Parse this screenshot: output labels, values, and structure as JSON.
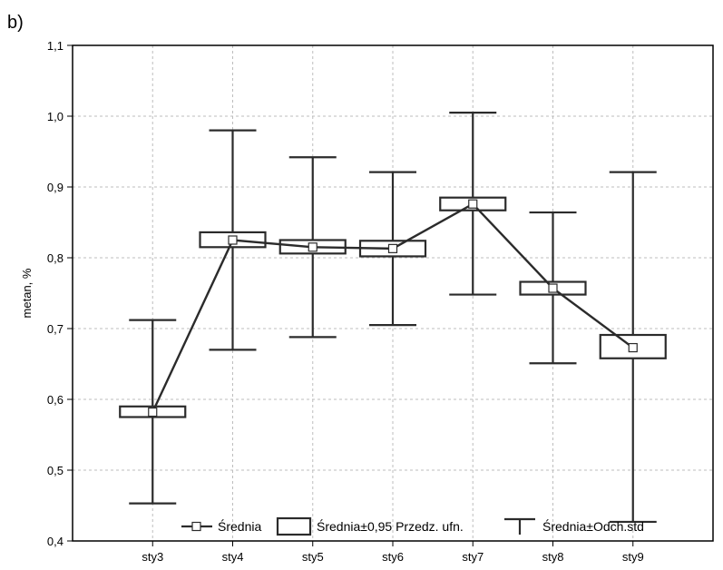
{
  "panel_label": "b)",
  "chart_data": {
    "type": "box",
    "title": "",
    "xlabel": "",
    "ylabel": "metan, %",
    "ylim": [
      0.4,
      1.1
    ],
    "yticks": [
      "0,4",
      "0,5",
      "0,6",
      "0,7",
      "0,8",
      "0,9",
      "1,0",
      "1,1"
    ],
    "yticks_values": [
      0.4,
      0.5,
      0.6,
      0.7,
      0.8,
      0.9,
      1.0,
      1.1
    ],
    "categories": [
      "sty3",
      "sty4",
      "sty5",
      "sty6",
      "sty7",
      "sty8",
      "sty9"
    ],
    "grid": true,
    "legend_position": "bottom",
    "series": [
      {
        "name": "Średnia",
        "values": [
          0.582,
          0.825,
          0.815,
          0.813,
          0.876,
          0.757,
          0.673
        ]
      },
      {
        "name": "Średnia±0,95 Przedz. ufn.",
        "low": [
          0.575,
          0.815,
          0.806,
          0.802,
          0.867,
          0.748,
          0.658
        ],
        "high": [
          0.59,
          0.836,
          0.825,
          0.824,
          0.885,
          0.766,
          0.691
        ]
      },
      {
        "name": "Średnia±Odch.std",
        "low": [
          0.453,
          0.67,
          0.688,
          0.705,
          0.748,
          0.651,
          0.427
        ],
        "high": [
          0.712,
          0.98,
          0.942,
          0.921,
          1.005,
          0.864,
          0.921
        ]
      }
    ],
    "colors": {
      "line": "#2b2b2b",
      "grid": "#bdbdbd",
      "marker_fill": "#ffffff"
    }
  }
}
